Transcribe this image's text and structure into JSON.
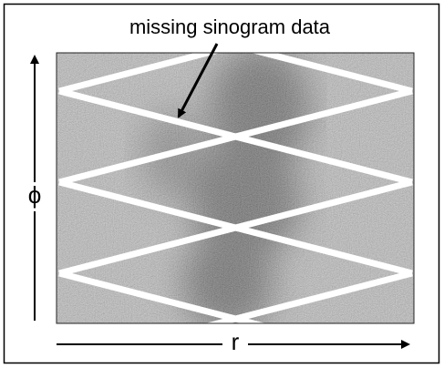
{
  "annotation": "missing sinogram data",
  "axes": {
    "y_label": "ϕ",
    "x_label": "r"
  }
}
